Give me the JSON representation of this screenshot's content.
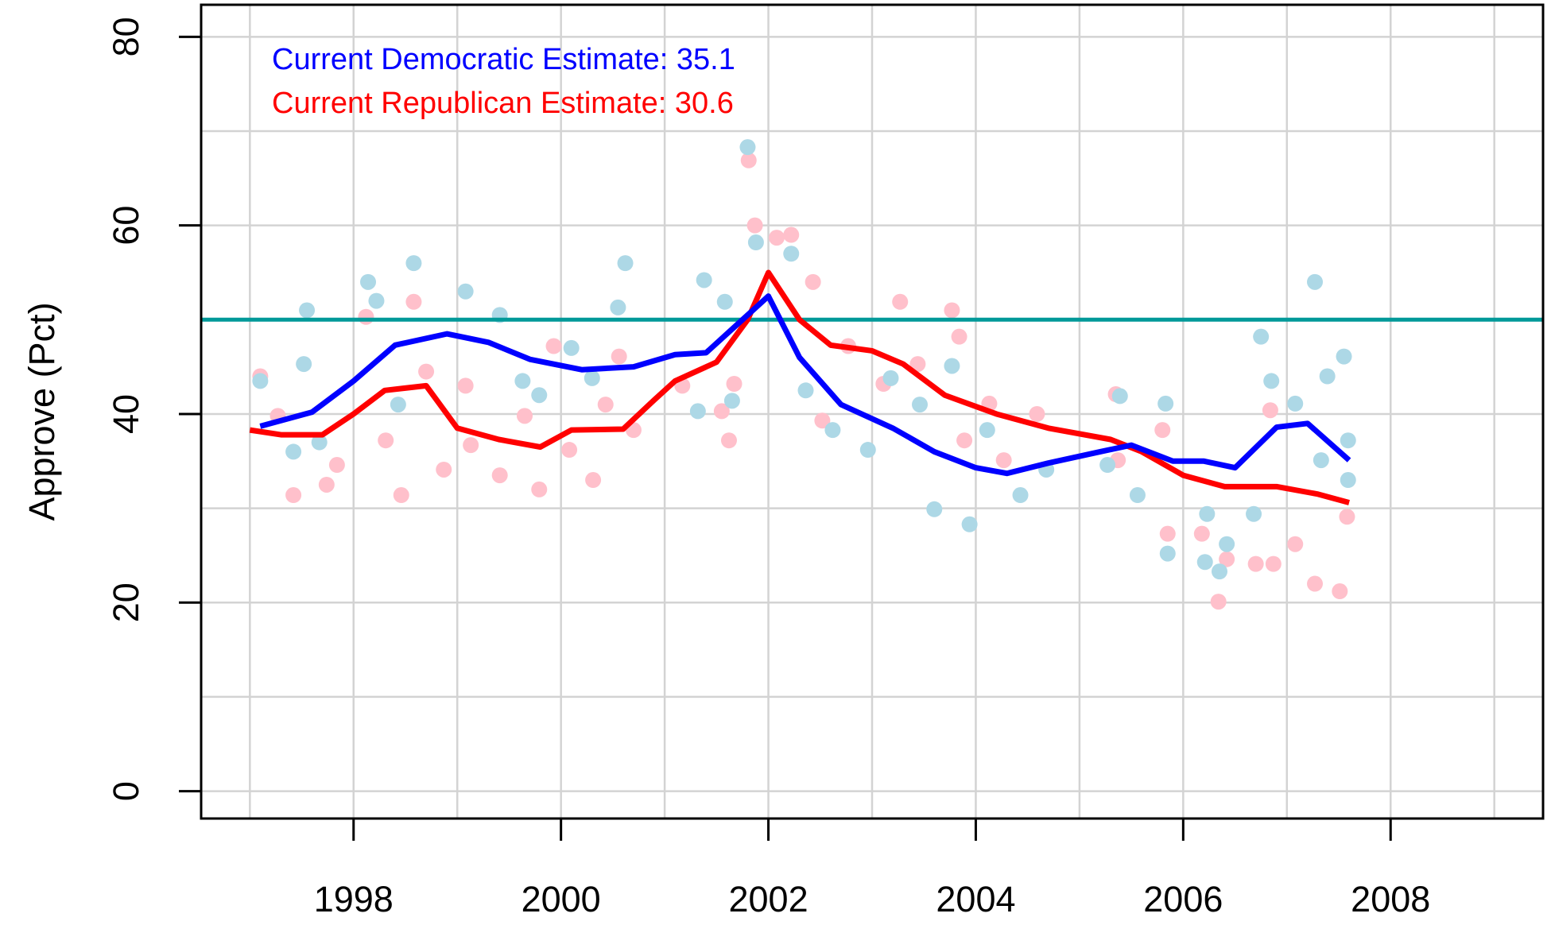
{
  "chart_data": {
    "type": "scatter",
    "ylabel": "Approve (Pct)",
    "annotations": [
      {
        "text": "Current Democratic Estimate: 35.1",
        "color": "#0000ff"
      },
      {
        "text": "Current Republican Estimate: 30.6",
        "color": "#ff0000"
      }
    ],
    "hline": {
      "value": 50,
      "color": "#009999"
    },
    "xlim": [
      1996.53,
      2009.47
    ],
    "ylim": [
      -2.9,
      83.4
    ],
    "xticks": [
      1998,
      2000,
      2002,
      2004,
      2006,
      2008
    ],
    "yticks": [
      0,
      20,
      40,
      60,
      80
    ],
    "xgrid": [
      1997,
      1998,
      1999,
      2000,
      2001,
      2002,
      2003,
      2004,
      2005,
      2006,
      2007,
      2008,
      2009
    ],
    "ygrid": [
      0,
      10,
      20,
      30,
      40,
      50,
      60,
      70,
      80
    ],
    "grid": true,
    "series": [
      {
        "type": "scatter",
        "color": "#ffc0cb",
        "x": [
          1997.1,
          1997.42,
          1997.27,
          1997.74,
          1997.84,
          1998.12,
          1998.31,
          1998.46,
          1998.58,
          1998.7,
          1998.87,
          1999.08,
          1999.13,
          1999.41,
          1999.65,
          1999.79,
          1999.93,
          2000.08,
          2000.31,
          2000.43,
          2000.56,
          2000.7,
          2001.17,
          2001.55,
          2001.62,
          2001.67,
          2001.81,
          2001.87,
          2002.08,
          2002.22,
          2002.43,
          2002.52,
          2002.77,
          2003.11,
          2003.27,
          2003.44,
          2003.77,
          2003.84,
          2003.89,
          2004.13,
          2004.27,
          2004.59,
          2005.35,
          2005.37,
          2005.8,
          2005.85,
          2006.18,
          2006.34,
          2006.42,
          2006.7,
          2006.87,
          2006.84,
          2007.08,
          2007.27,
          2007.51,
          2007.58
        ],
        "values": [
          44,
          31.4,
          39.8,
          32.5,
          34.6,
          50.3,
          37.2,
          31.4,
          51.9,
          44.5,
          34.1,
          43,
          36.7,
          33.5,
          39.8,
          32,
          47.2,
          36.2,
          33,
          41,
          46.1,
          38.3,
          43,
          40.3,
          37.2,
          43.2,
          66.9,
          60,
          58.7,
          59,
          54,
          39.3,
          47.2,
          43.2,
          51.9,
          45.3,
          51,
          48.2,
          37.2,
          41.1,
          35.1,
          40,
          42.1,
          35.1,
          38.3,
          27.3,
          27.3,
          20.1,
          24.6,
          24.1,
          24.1,
          40.4,
          26.2,
          22,
          21.2,
          29.1
        ]
      },
      {
        "type": "scatter",
        "color": "#add8e6",
        "x": [
          1997.1,
          1997.55,
          1997.52,
          1997.42,
          1997.67,
          1998.14,
          1998.22,
          1998.43,
          1998.58,
          1999.08,
          1999.41,
          1999.63,
          1999.79,
          2000.1,
          2000.3,
          2000.62,
          2000.55,
          2001.38,
          2001.32,
          2001.58,
          2001.65,
          2001.8,
          2001.88,
          2002.22,
          2002.36,
          2002.62,
          2002.96,
          2003.18,
          2003.46,
          2003.6,
          2003.77,
          2003.94,
          2004.11,
          2004.43,
          2004.68,
          2005.39,
          2005.27,
          2005.56,
          2005.83,
          2005.85,
          2006.23,
          2006.21,
          2006.42,
          2006.35,
          2006.68,
          2006.75,
          2006.85,
          2007.08,
          2007.27,
          2007.39,
          2007.55,
          2007.59,
          2007.59,
          2007.33
        ],
        "values": [
          43.5,
          51,
          45.3,
          36,
          37,
          54,
          52,
          41,
          56,
          53,
          50.5,
          43.5,
          42,
          47,
          43.8,
          56,
          51.3,
          54.2,
          40.3,
          51.9,
          41.4,
          68.3,
          58.2,
          57,
          42.5,
          38.3,
          36.2,
          43.8,
          41,
          29.9,
          45.1,
          28.3,
          38.3,
          31.4,
          34.1,
          41.9,
          34.6,
          31.4,
          41.1,
          25.2,
          29.4,
          24.3,
          26.2,
          23.3,
          29.4,
          48.2,
          43.5,
          41.1,
          54,
          44,
          46.1,
          37.2,
          33,
          35.1
        ]
      },
      {
        "type": "line",
        "color": "#ff0000",
        "x": [
          1997.0,
          1997.3,
          1997.7,
          1998.0,
          1998.3,
          1998.7,
          1999.0,
          1999.4,
          1999.8,
          2000.1,
          2000.6,
          2000.9,
          2001.1,
          2001.5,
          2001.8,
          2002.0,
          2002.3,
          2002.6,
          2003.0,
          2003.3,
          2003.7,
          2004.2,
          2004.7,
          2005.3,
          2005.6,
          2006.0,
          2006.4,
          2006.9,
          2007.3,
          2007.6
        ],
        "values": [
          38.3,
          37.8,
          37.8,
          40,
          42.5,
          43,
          38.5,
          37.3,
          36.5,
          38.3,
          38.4,
          41.5,
          43.5,
          45.5,
          50,
          55,
          50,
          47.3,
          46.7,
          45.3,
          42,
          40,
          38.5,
          37.3,
          36,
          33.5,
          32.3,
          32.3,
          31.5,
          30.6
        ]
      },
      {
        "type": "line",
        "color": "#0000ff",
        "x": [
          1997.1,
          1997.6,
          1998.0,
          1998.4,
          1998.9,
          1999.3,
          1999.7,
          2000.2,
          2000.7,
          2001.1,
          2001.4,
          2001.7,
          2002.0,
          2002.3,
          2002.7,
          2003.2,
          2003.6,
          2004.0,
          2004.3,
          2004.7,
          2005.2,
          2005.5,
          2005.9,
          2006.2,
          2006.5,
          2006.9,
          2007.2,
          2007.6
        ],
        "values": [
          38.7,
          40.2,
          43.5,
          47.3,
          48.5,
          47.6,
          45.8,
          44.7,
          45,
          46.3,
          46.5,
          49.5,
          52.5,
          46,
          41,
          38.5,
          36,
          34.3,
          33.7,
          34.8,
          36,
          36.7,
          35,
          35,
          34.3,
          38.6,
          39,
          35.1
        ]
      }
    ]
  }
}
